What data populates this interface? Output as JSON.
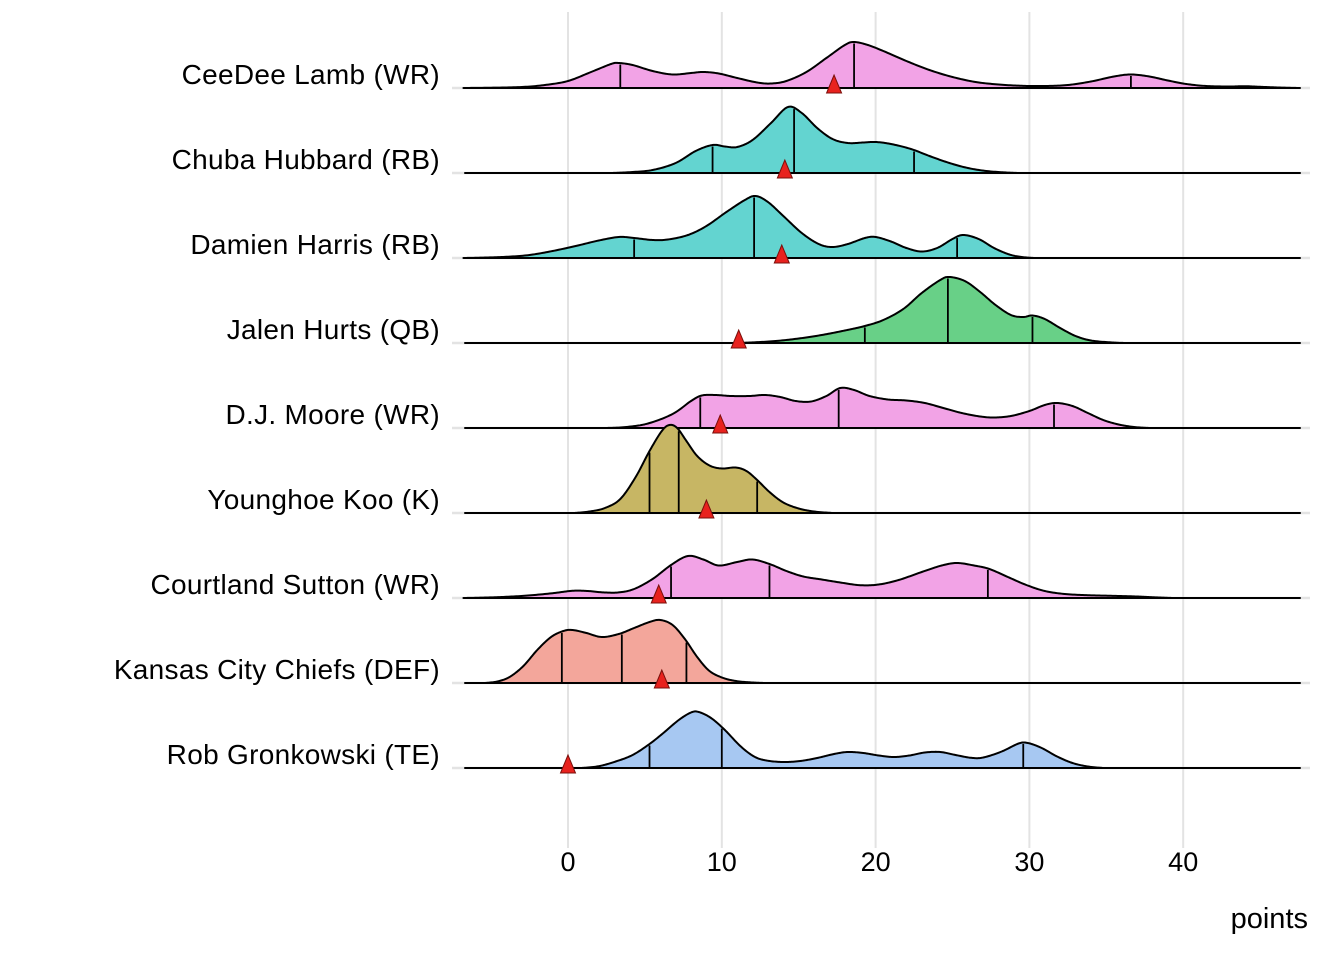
{
  "chart_data": {
    "type": "area",
    "subtype": "ridgeline-density",
    "title": "",
    "xlabel": "points",
    "x_ticks": [
      0,
      10,
      20,
      30,
      40
    ],
    "x_range": [
      -6.8,
      47.6
    ],
    "grid": "vertical-major-and-row-baselines",
    "legend_position": "none",
    "marker_glyph": "red-triangle",
    "colors": {
      "grid": "#e3e3e3",
      "outline": "#000000",
      "marker_fill": "#e8221e",
      "marker_stroke": "#7a100c",
      "wr_pink": "#f2a3e6",
      "rb_turquoise": "#63d4d0",
      "qb_green": "#68d087",
      "k_khaki": "#c7b664",
      "def_salmon": "#f3a69b",
      "te_blue": "#a7c8f2"
    },
    "series": [
      {
        "name": "CeeDee Lamb (WR)",
        "fill": "#f2a3e6",
        "quantile_lines": [
          3.4,
          18.6,
          36.6
        ],
        "marker_triangle_x": 17.3,
        "density_profile": [
          [
            -6.8,
            0
          ],
          [
            -5,
            0.3
          ],
          [
            -3,
            1
          ],
          [
            -1.5,
            3
          ],
          [
            0,
            7
          ],
          [
            1.5,
            16
          ],
          [
            2.8,
            24
          ],
          [
            3.3,
            25
          ],
          [
            4.2,
            23
          ],
          [
            5.5,
            17
          ],
          [
            6.8,
            13.5
          ],
          [
            8,
            15
          ],
          [
            8.8,
            16
          ],
          [
            9.8,
            14.5
          ],
          [
            11,
            10
          ],
          [
            12.3,
            5.5
          ],
          [
            13.2,
            4.5
          ],
          [
            14.2,
            7
          ],
          [
            15.5,
            16
          ],
          [
            16.8,
            30
          ],
          [
            18,
            43
          ],
          [
            18.6,
            46
          ],
          [
            19.5,
            43
          ],
          [
            20.5,
            37
          ],
          [
            22,
            27
          ],
          [
            23.5,
            18
          ],
          [
            25,
            11
          ],
          [
            26.5,
            6
          ],
          [
            28,
            3.5
          ],
          [
            29.5,
            2.2
          ],
          [
            31,
            2
          ],
          [
            32.5,
            3
          ],
          [
            34,
            6.5
          ],
          [
            35.5,
            11.5
          ],
          [
            36.6,
            13.5
          ],
          [
            37.8,
            11.5
          ],
          [
            39,
            7.5
          ],
          [
            40.2,
            4
          ],
          [
            41.5,
            2
          ],
          [
            43,
            1.5
          ],
          [
            44,
            1.8
          ],
          [
            45,
            1.2
          ],
          [
            46.2,
            0.5
          ],
          [
            47.5,
            0
          ]
        ]
      },
      {
        "name": "Chuba Hubbard (RB)",
        "fill": "#63d4d0",
        "quantile_lines": [
          9.4,
          14.7,
          22.5
        ],
        "marker_triangle_x": 14.1,
        "density_profile": [
          [
            2.8,
            0
          ],
          [
            4,
            0.8
          ],
          [
            5.5,
            3
          ],
          [
            7,
            10
          ],
          [
            8.3,
            22
          ],
          [
            9.4,
            28
          ],
          [
            10.2,
            26.5
          ],
          [
            11,
            26
          ],
          [
            12,
            33
          ],
          [
            13.2,
            50
          ],
          [
            14.3,
            66
          ],
          [
            15.2,
            60
          ],
          [
            16.2,
            45
          ],
          [
            17.2,
            34
          ],
          [
            18.2,
            30
          ],
          [
            19.2,
            30.5
          ],
          [
            20,
            31
          ],
          [
            21,
            29
          ],
          [
            22.3,
            24
          ],
          [
            23.5,
            17
          ],
          [
            24.8,
            10
          ],
          [
            26,
            5
          ],
          [
            27.2,
            2
          ],
          [
            28.5,
            0.5
          ],
          [
            29.3,
            0
          ]
        ]
      },
      {
        "name": "Damien Harris (RB)",
        "fill": "#63d4d0",
        "quantile_lines": [
          4.3,
          12.1,
          25.3
        ],
        "marker_triangle_x": 13.9,
        "density_profile": [
          [
            -6.8,
            0
          ],
          [
            -5.5,
            0.4
          ],
          [
            -4,
            1.2
          ],
          [
            -2.5,
            3
          ],
          [
            -1,
            7
          ],
          [
            0.5,
            12
          ],
          [
            2,
            17.5
          ],
          [
            3.3,
            21
          ],
          [
            4.3,
            20
          ],
          [
            5.5,
            18
          ],
          [
            6.5,
            18.5
          ],
          [
            7.8,
            23
          ],
          [
            9,
            32
          ],
          [
            10.3,
            46
          ],
          [
            11.5,
            58
          ],
          [
            12.2,
            62
          ],
          [
            13,
            56
          ],
          [
            14,
            42
          ],
          [
            15.2,
            25
          ],
          [
            16.3,
            14
          ],
          [
            17.2,
            11
          ],
          [
            18.2,
            14
          ],
          [
            19.3,
            20
          ],
          [
            20,
            21
          ],
          [
            21,
            16.5
          ],
          [
            22,
            10
          ],
          [
            23,
            6.5
          ],
          [
            24,
            10
          ],
          [
            25,
            19
          ],
          [
            25.7,
            23
          ],
          [
            26.7,
            19
          ],
          [
            27.7,
            10
          ],
          [
            28.7,
            3.5
          ],
          [
            29.5,
            1
          ],
          [
            30.3,
            0
          ]
        ]
      },
      {
        "name": "Jalen Hurts (QB)",
        "fill": "#68d087",
        "quantile_lines": [
          19.3,
          24.7,
          30.2
        ],
        "marker_triangle_x": 11.1,
        "density_profile": [
          [
            10.8,
            0
          ],
          [
            12,
            0.6
          ],
          [
            13.5,
            2
          ],
          [
            15,
            4.5
          ],
          [
            16.5,
            8
          ],
          [
            18,
            12.5
          ],
          [
            19.3,
            17
          ],
          [
            20.5,
            23
          ],
          [
            21.8,
            34
          ],
          [
            23,
            50
          ],
          [
            24.2,
            63
          ],
          [
            24.8,
            66
          ],
          [
            25.8,
            62
          ],
          [
            26.8,
            51
          ],
          [
            27.8,
            38
          ],
          [
            28.8,
            28
          ],
          [
            29.6,
            26
          ],
          [
            30.2,
            27.5
          ],
          [
            31,
            24
          ],
          [
            32,
            15
          ],
          [
            33,
            7
          ],
          [
            34,
            2.5
          ],
          [
            35.3,
            0.6
          ],
          [
            36.2,
            0
          ]
        ]
      },
      {
        "name": "D.J. Moore (WR)",
        "fill": "#f2a3e6",
        "quantile_lines": [
          8.6,
          17.6,
          31.6
        ],
        "marker_triangle_x": 9.9,
        "density_profile": [
          [
            2.5,
            0
          ],
          [
            3.8,
            1
          ],
          [
            5.2,
            4.5
          ],
          [
            6.8,
            14
          ],
          [
            8,
            27
          ],
          [
            8.7,
            32.5
          ],
          [
            9.6,
            33
          ],
          [
            10.6,
            32
          ],
          [
            11.8,
            32
          ],
          [
            12.8,
            33
          ],
          [
            13.8,
            31
          ],
          [
            14.8,
            27
          ],
          [
            15.8,
            26.5
          ],
          [
            16.8,
            32
          ],
          [
            17.7,
            40
          ],
          [
            18.6,
            38
          ],
          [
            19.6,
            32
          ],
          [
            20.8,
            28.5
          ],
          [
            22,
            27.5
          ],
          [
            23.2,
            25
          ],
          [
            24.4,
            20
          ],
          [
            25.6,
            15
          ],
          [
            26.8,
            11.5
          ],
          [
            27.7,
            10.5
          ],
          [
            28.8,
            12
          ],
          [
            30,
            17
          ],
          [
            31,
            23
          ],
          [
            31.8,
            25
          ],
          [
            32.8,
            22
          ],
          [
            33.8,
            15
          ],
          [
            34.8,
            8
          ],
          [
            35.8,
            3.5
          ],
          [
            36.8,
            1
          ],
          [
            37.8,
            0
          ]
        ]
      },
      {
        "name": "Younghoe Koo (K)",
        "fill": "#c7b664",
        "quantile_lines": [
          5.3,
          7.2,
          12.3
        ],
        "marker_triangle_x": 9.0,
        "density_profile": [
          [
            0.4,
            0
          ],
          [
            1.4,
            1.5
          ],
          [
            2.4,
            5
          ],
          [
            3.4,
            14
          ],
          [
            4.4,
            36
          ],
          [
            5.3,
            62
          ],
          [
            6.1,
            82
          ],
          [
            6.6,
            88
          ],
          [
            7.1,
            85
          ],
          [
            7.7,
            72
          ],
          [
            8.4,
            57
          ],
          [
            9.2,
            47.5
          ],
          [
            10,
            44.5
          ],
          [
            10.9,
            45.5
          ],
          [
            11.6,
            42
          ],
          [
            12.3,
            33
          ],
          [
            13.1,
            21
          ],
          [
            14,
            10.5
          ],
          [
            15,
            4.5
          ],
          [
            16,
            1.5
          ],
          [
            17.2,
            0
          ]
        ]
      },
      {
        "name": "Courtland Sutton (WR)",
        "fill": "#f2a3e6",
        "quantile_lines": [
          6.7,
          13.1,
          27.3
        ],
        "marker_triangle_x": 5.9,
        "density_profile": [
          [
            -6.8,
            0
          ],
          [
            -5.5,
            0.4
          ],
          [
            -4,
            1.2
          ],
          [
            -2.5,
            2.6
          ],
          [
            -1,
            4.8
          ],
          [
            0.3,
            7.2
          ],
          [
            1.3,
            7
          ],
          [
            2.3,
            5.6
          ],
          [
            3.3,
            5.6
          ],
          [
            4.3,
            9
          ],
          [
            5.5,
            19
          ],
          [
            6.7,
            33
          ],
          [
            7.8,
            42
          ],
          [
            8.8,
            38.5
          ],
          [
            9.8,
            32.5
          ],
          [
            11,
            36
          ],
          [
            12,
            38.5
          ],
          [
            13.1,
            34
          ],
          [
            14.2,
            27
          ],
          [
            15.3,
            21.5
          ],
          [
            16.5,
            18.5
          ],
          [
            17.7,
            15.5
          ],
          [
            19,
            12.8
          ],
          [
            20.2,
            13.5
          ],
          [
            21.5,
            18
          ],
          [
            23,
            26
          ],
          [
            24.3,
            32.5
          ],
          [
            25.3,
            35
          ],
          [
            26.4,
            32.5
          ],
          [
            27.4,
            29
          ],
          [
            28.6,
            21
          ],
          [
            29.8,
            13
          ],
          [
            31,
            7
          ],
          [
            32.3,
            4
          ],
          [
            33.8,
            2.8
          ],
          [
            35.3,
            2.2
          ],
          [
            36.8,
            1.6
          ],
          [
            38,
            0.8
          ],
          [
            39.3,
            0
          ]
        ]
      },
      {
        "name": "Kansas City Chiefs (DEF)",
        "fill": "#f3a69b",
        "quantile_lines": [
          -0.4,
          3.5,
          7.7
        ],
        "marker_triangle_x": 6.1,
        "density_profile": [
          [
            -5.4,
            0
          ],
          [
            -4.6,
            1.5
          ],
          [
            -3.8,
            6
          ],
          [
            -2.9,
            17
          ],
          [
            -2,
            33
          ],
          [
            -1.1,
            46
          ],
          [
            -0.3,
            52
          ],
          [
            0.3,
            53
          ],
          [
            1.2,
            50
          ],
          [
            2.2,
            46
          ],
          [
            3.3,
            49
          ],
          [
            4.3,
            55
          ],
          [
            5.3,
            61
          ],
          [
            6,
            63
          ],
          [
            6.8,
            58
          ],
          [
            7.6,
            44
          ],
          [
            8.4,
            26
          ],
          [
            9.2,
            12
          ],
          [
            10.1,
            5
          ],
          [
            11,
            1.8
          ],
          [
            12,
            0.5
          ],
          [
            12.8,
            0
          ]
        ]
      },
      {
        "name": "Rob Gronkowski (TE)",
        "fill": "#a7c8f2",
        "quantile_lines": [
          5.3,
          10.0,
          29.6
        ],
        "marker_triangle_x": 0.0,
        "density_profile": [
          [
            0.9,
            0
          ],
          [
            2,
            1.8
          ],
          [
            3.1,
            6.5
          ],
          [
            4.2,
            13
          ],
          [
            5.3,
            24
          ],
          [
            6.2,
            35
          ],
          [
            7.2,
            48
          ],
          [
            8,
            55.5
          ],
          [
            8.5,
            56
          ],
          [
            9.3,
            50
          ],
          [
            10.2,
            38
          ],
          [
            11.2,
            22
          ],
          [
            12.1,
            11.5
          ],
          [
            12.9,
            7.5
          ],
          [
            14,
            6
          ],
          [
            15.1,
            7
          ],
          [
            16.2,
            10
          ],
          [
            17.3,
            14
          ],
          [
            18.2,
            16
          ],
          [
            19.2,
            15
          ],
          [
            20.2,
            12.5
          ],
          [
            21.2,
            11
          ],
          [
            22.2,
            12.5
          ],
          [
            23.2,
            15.5
          ],
          [
            24.2,
            16
          ],
          [
            25.2,
            13
          ],
          [
            26.2,
            10.2
          ],
          [
            27,
            10.5
          ],
          [
            28.2,
            16.5
          ],
          [
            29.3,
            24.5
          ],
          [
            29.9,
            25
          ],
          [
            30.8,
            20
          ],
          [
            31.8,
            11.5
          ],
          [
            32.8,
            5
          ],
          [
            33.8,
            1.5
          ],
          [
            34.8,
            0
          ]
        ]
      }
    ]
  },
  "axis": {
    "title": "points",
    "tick_labels": [
      "0",
      "10",
      "20",
      "30",
      "40"
    ]
  }
}
